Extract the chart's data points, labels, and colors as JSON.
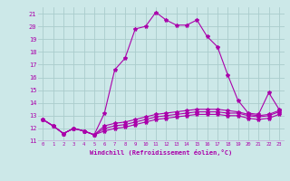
{
  "xlabel": "Windchill (Refroidissement éolien,°C)",
  "background_color": "#cce8e8",
  "grid_color": "#aacccc",
  "line_color": "#aa00aa",
  "xlim": [
    -0.5,
    23.5
  ],
  "ylim": [
    11,
    21.5
  ],
  "yticks": [
    11,
    12,
    13,
    14,
    15,
    16,
    17,
    18,
    19,
    20,
    21
  ],
  "xticks": [
    0,
    1,
    2,
    3,
    4,
    5,
    6,
    7,
    8,
    9,
    10,
    11,
    12,
    13,
    14,
    15,
    16,
    17,
    18,
    19,
    20,
    21,
    22,
    23
  ],
  "series": [
    [
      12.7,
      12.2,
      11.6,
      12.0,
      11.8,
      11.5,
      13.2,
      16.6,
      17.5,
      19.8,
      20.0,
      21.1,
      20.5,
      20.1,
      20.1,
      20.5,
      19.2,
      18.4,
      16.2,
      14.2,
      13.2,
      13.1,
      14.8,
      13.5
    ],
    [
      12.7,
      12.2,
      11.6,
      12.0,
      11.8,
      11.5,
      12.2,
      12.4,
      12.5,
      12.7,
      12.9,
      13.1,
      13.2,
      13.3,
      13.4,
      13.5,
      13.5,
      13.5,
      13.4,
      13.3,
      13.1,
      13.0,
      13.1,
      13.4
    ],
    [
      12.7,
      12.2,
      11.6,
      12.0,
      11.8,
      11.5,
      12.0,
      12.2,
      12.3,
      12.5,
      12.7,
      12.9,
      13.0,
      13.1,
      13.2,
      13.3,
      13.3,
      13.3,
      13.2,
      13.2,
      13.0,
      12.9,
      13.0,
      13.3
    ],
    [
      12.7,
      12.2,
      11.6,
      12.0,
      11.8,
      11.5,
      11.8,
      12.0,
      12.1,
      12.3,
      12.5,
      12.7,
      12.8,
      12.9,
      13.0,
      13.1,
      13.1,
      13.1,
      13.0,
      13.0,
      12.8,
      12.7,
      12.8,
      13.1
    ]
  ]
}
